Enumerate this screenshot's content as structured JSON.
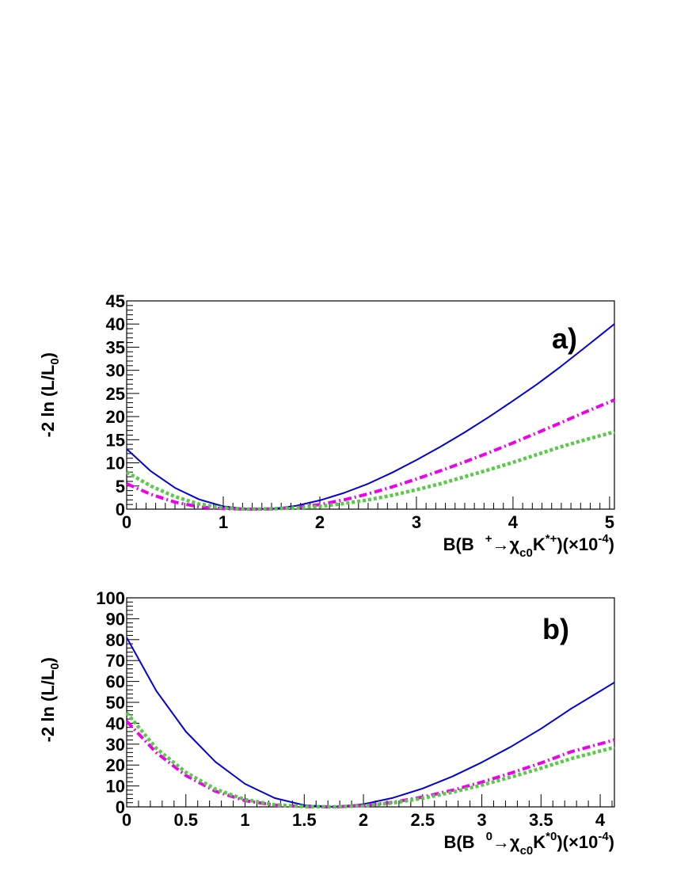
{
  "chart_data": [
    {
      "type": "line",
      "panel_label": "a)",
      "ylabel": {
        "main": "-2 ln (L/L",
        "sub": "0",
        "tail": ")"
      },
      "xlabel": {
        "pre": "B(B",
        "sup1": "+",
        "mid": "→χ",
        "sub": "c0",
        "k": "K",
        "sup2": "*+",
        "post": ")(×10",
        "sup3": "-4",
        "end": ")"
      },
      "xlim": [
        0,
        5.05
      ],
      "ylim": [
        0,
        45
      ],
      "x_ticks": [
        0,
        1,
        2,
        3,
        4,
        5
      ],
      "x_tick_labels": [
        "0",
        "1",
        "2",
        "3",
        "4",
        "5"
      ],
      "y_ticks": [
        0,
        5,
        10,
        15,
        20,
        25,
        30,
        35,
        40,
        45
      ],
      "y_tick_labels": [
        "0",
        "5",
        "10",
        "15",
        "20",
        "25",
        "30",
        "35",
        "40",
        "45"
      ],
      "x_minor_step": 0.1,
      "y_minor_step": 1,
      "series": [
        {
          "style": "solid",
          "color": "#0000dd",
          "x": [
            0,
            0.25,
            0.5,
            0.75,
            1,
            1.25,
            1.5,
            1.75,
            2,
            2.25,
            2.5,
            2.75,
            3,
            3.25,
            3.5,
            3.75,
            4,
            4.25,
            4.5,
            4.75,
            5.05
          ],
          "y": [
            13.0,
            8.2,
            4.6,
            2.1,
            0.6,
            0.05,
            0.05,
            0.7,
            1.9,
            3.5,
            5.5,
            7.9,
            10.6,
            13.5,
            16.6,
            19.9,
            23.4,
            27.0,
            30.9,
            35.0,
            40.0
          ]
        },
        {
          "style": "dashdot",
          "color": "#ee00ee",
          "x": [
            0,
            0.25,
            0.5,
            0.75,
            1,
            1.25,
            1.5,
            1.75,
            2,
            2.25,
            2.5,
            2.75,
            3,
            3.25,
            3.5,
            3.75,
            4,
            4.25,
            4.5,
            4.75,
            5.05
          ],
          "y": [
            5.5,
            3.2,
            1.5,
            0.5,
            0.1,
            0.0,
            0.05,
            0.35,
            1.0,
            2.0,
            3.3,
            4.8,
            6.5,
            8.3,
            10.2,
            12.2,
            14.3,
            16.5,
            18.7,
            21.0,
            23.6
          ]
        },
        {
          "style": "dotted",
          "color": "#55cc44",
          "x": [
            0,
            0.25,
            0.5,
            0.75,
            1,
            1.25,
            1.5,
            1.75,
            2,
            2.25,
            2.5,
            2.75,
            3,
            3.25,
            3.5,
            3.75,
            4,
            4.25,
            4.5,
            4.75,
            5.05
          ],
          "y": [
            8.0,
            5.0,
            2.7,
            1.1,
            0.25,
            0.0,
            0.05,
            0.25,
            0.6,
            1.2,
            2.0,
            3.0,
            4.2,
            5.5,
            7.0,
            8.5,
            10.1,
            11.8,
            13.5,
            15.0,
            16.7
          ]
        }
      ]
    },
    {
      "type": "line",
      "panel_label": "b)",
      "ylabel": {
        "main": "-2 ln (L/L",
        "sub": "0",
        "tail": ")"
      },
      "xlabel": {
        "pre": "B(B",
        "sup1": "0",
        "mid": "→χ",
        "sub": "c0",
        "k": "K",
        "sup2": "*0",
        "post": ")(×10",
        "sup3": "-4",
        "end": ")"
      },
      "xlim": [
        0,
        4.12
      ],
      "ylim": [
        0,
        100
      ],
      "x_ticks": [
        0,
        0.5,
        1,
        1.5,
        2,
        2.5,
        3,
        3.5,
        4
      ],
      "x_tick_labels": [
        "0",
        "0.5",
        "1",
        "1.5",
        "2",
        "2.5",
        "3",
        "3.5",
        "4"
      ],
      "y_ticks": [
        0,
        10,
        20,
        30,
        40,
        50,
        60,
        70,
        80,
        90,
        100
      ],
      "y_tick_labels": [
        "0",
        "10",
        "20",
        "30",
        "40",
        "50",
        "60",
        "70",
        "80",
        "90",
        "100"
      ],
      "x_minor_step": 0.1,
      "y_minor_step": 2,
      "series": [
        {
          "style": "solid",
          "color": "#0000dd",
          "x": [
            0,
            0.25,
            0.5,
            0.75,
            1,
            1.25,
            1.5,
            1.75,
            2,
            2.25,
            2.5,
            2.75,
            3,
            3.25,
            3.5,
            3.75,
            4.12
          ],
          "y": [
            81,
            55.5,
            36,
            21.5,
            11,
            4.2,
            0.8,
            0.0,
            1.3,
            4.3,
            8.8,
            14.5,
            21.3,
            28.9,
            37.4,
            46.8,
            59.5
          ]
        },
        {
          "style": "dashdot",
          "color": "#ee00ee",
          "x": [
            0,
            0.25,
            0.5,
            0.75,
            1,
            1.25,
            1.5,
            1.75,
            2,
            2.25,
            2.5,
            2.75,
            3,
            3.25,
            3.5,
            3.75,
            4.12
          ],
          "y": [
            41,
            26,
            15,
            7.5,
            3.0,
            0.8,
            0.1,
            0.0,
            0.6,
            2.2,
            4.7,
            7.9,
            11.8,
            16.2,
            21.0,
            26.3,
            32.0
          ]
        },
        {
          "style": "dotted",
          "color": "#55cc44",
          "x": [
            0,
            0.25,
            0.5,
            0.75,
            1,
            1.25,
            1.5,
            1.75,
            2,
            2.25,
            2.5,
            2.75,
            3,
            3.25,
            3.5,
            3.75,
            4.12
          ],
          "y": [
            45,
            28,
            16.5,
            8.5,
            3.5,
            1.0,
            0.15,
            0.0,
            0.5,
            1.9,
            4.1,
            7.0,
            10.4,
            14.3,
            18.5,
            23.0,
            28.5
          ]
        }
      ]
    }
  ]
}
